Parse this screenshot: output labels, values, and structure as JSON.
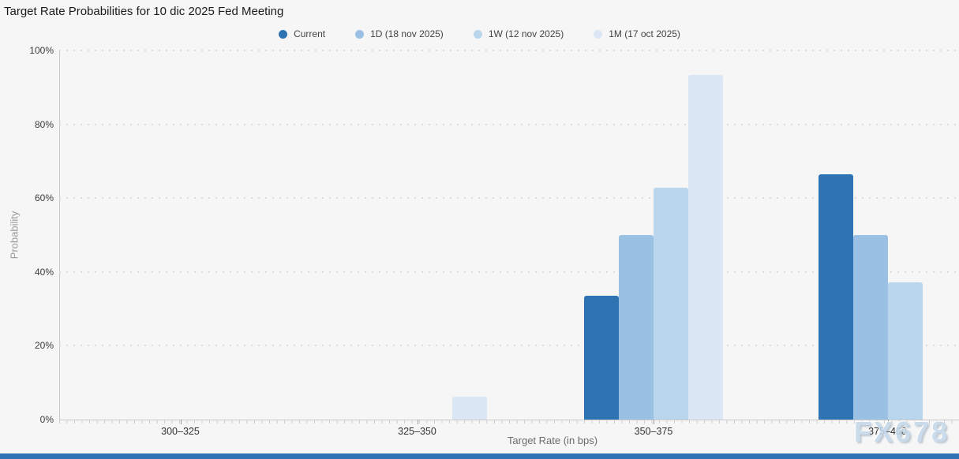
{
  "title": "Target Rate Probabilities for 10 dic 2025 Fed Meeting",
  "watermark": "FX678",
  "legend": [
    {
      "label": "Current",
      "color": "#2f73b2"
    },
    {
      "label": "1D (18 nov 2025)",
      "color": "#9ac0e4"
    },
    {
      "label": "1W (12 nov 2025)",
      "color": "#bad6ec"
    },
    {
      "label": "1M (17 oct 2025)",
      "color": "#dbe7f4"
    }
  ],
  "chart_data": {
    "type": "bar",
    "title": "Target Rate Probabilities for 10 dic 2025 Fed Meeting",
    "xlabel": "Target Rate (in bps)",
    "ylabel": "Probability",
    "categories": [
      "300–325",
      "325–350",
      "350–375",
      "375–400"
    ],
    "series": [
      {
        "name": "Current",
        "color": "#2f73b2",
        "values": [
          0,
          0,
          33.5,
          66.5
        ]
      },
      {
        "name": "1D (18 nov 2025)",
        "color": "#9ac0e4",
        "values": [
          0,
          0,
          50.1,
          49.9
        ]
      },
      {
        "name": "1W (12 nov 2025)",
        "color": "#bad6ec",
        "values": [
          0,
          0,
          62.8,
          37.2
        ]
      },
      {
        "name": "1M (17 oct 2025)",
        "color": "#dbe7f4",
        "values": [
          0,
          6.2,
          93.3,
          0
        ]
      }
    ],
    "ylim": [
      0,
      100
    ],
    "yticks": [
      "0%",
      "20%",
      "40%",
      "60%",
      "80%",
      "100%"
    ],
    "ytick_values": [
      0,
      20,
      40,
      60,
      80,
      100
    ],
    "grid": "dotted-horizontal",
    "legend_position": "top-center"
  },
  "colors": {
    "background": "#f6f6f6",
    "axis": "#c9c9c9",
    "grid_dots": "#dcdcdc",
    "tick_text": "#3c3c3c",
    "bottom_strip": "#2f73b2",
    "watermark": "#c5d8ea"
  }
}
